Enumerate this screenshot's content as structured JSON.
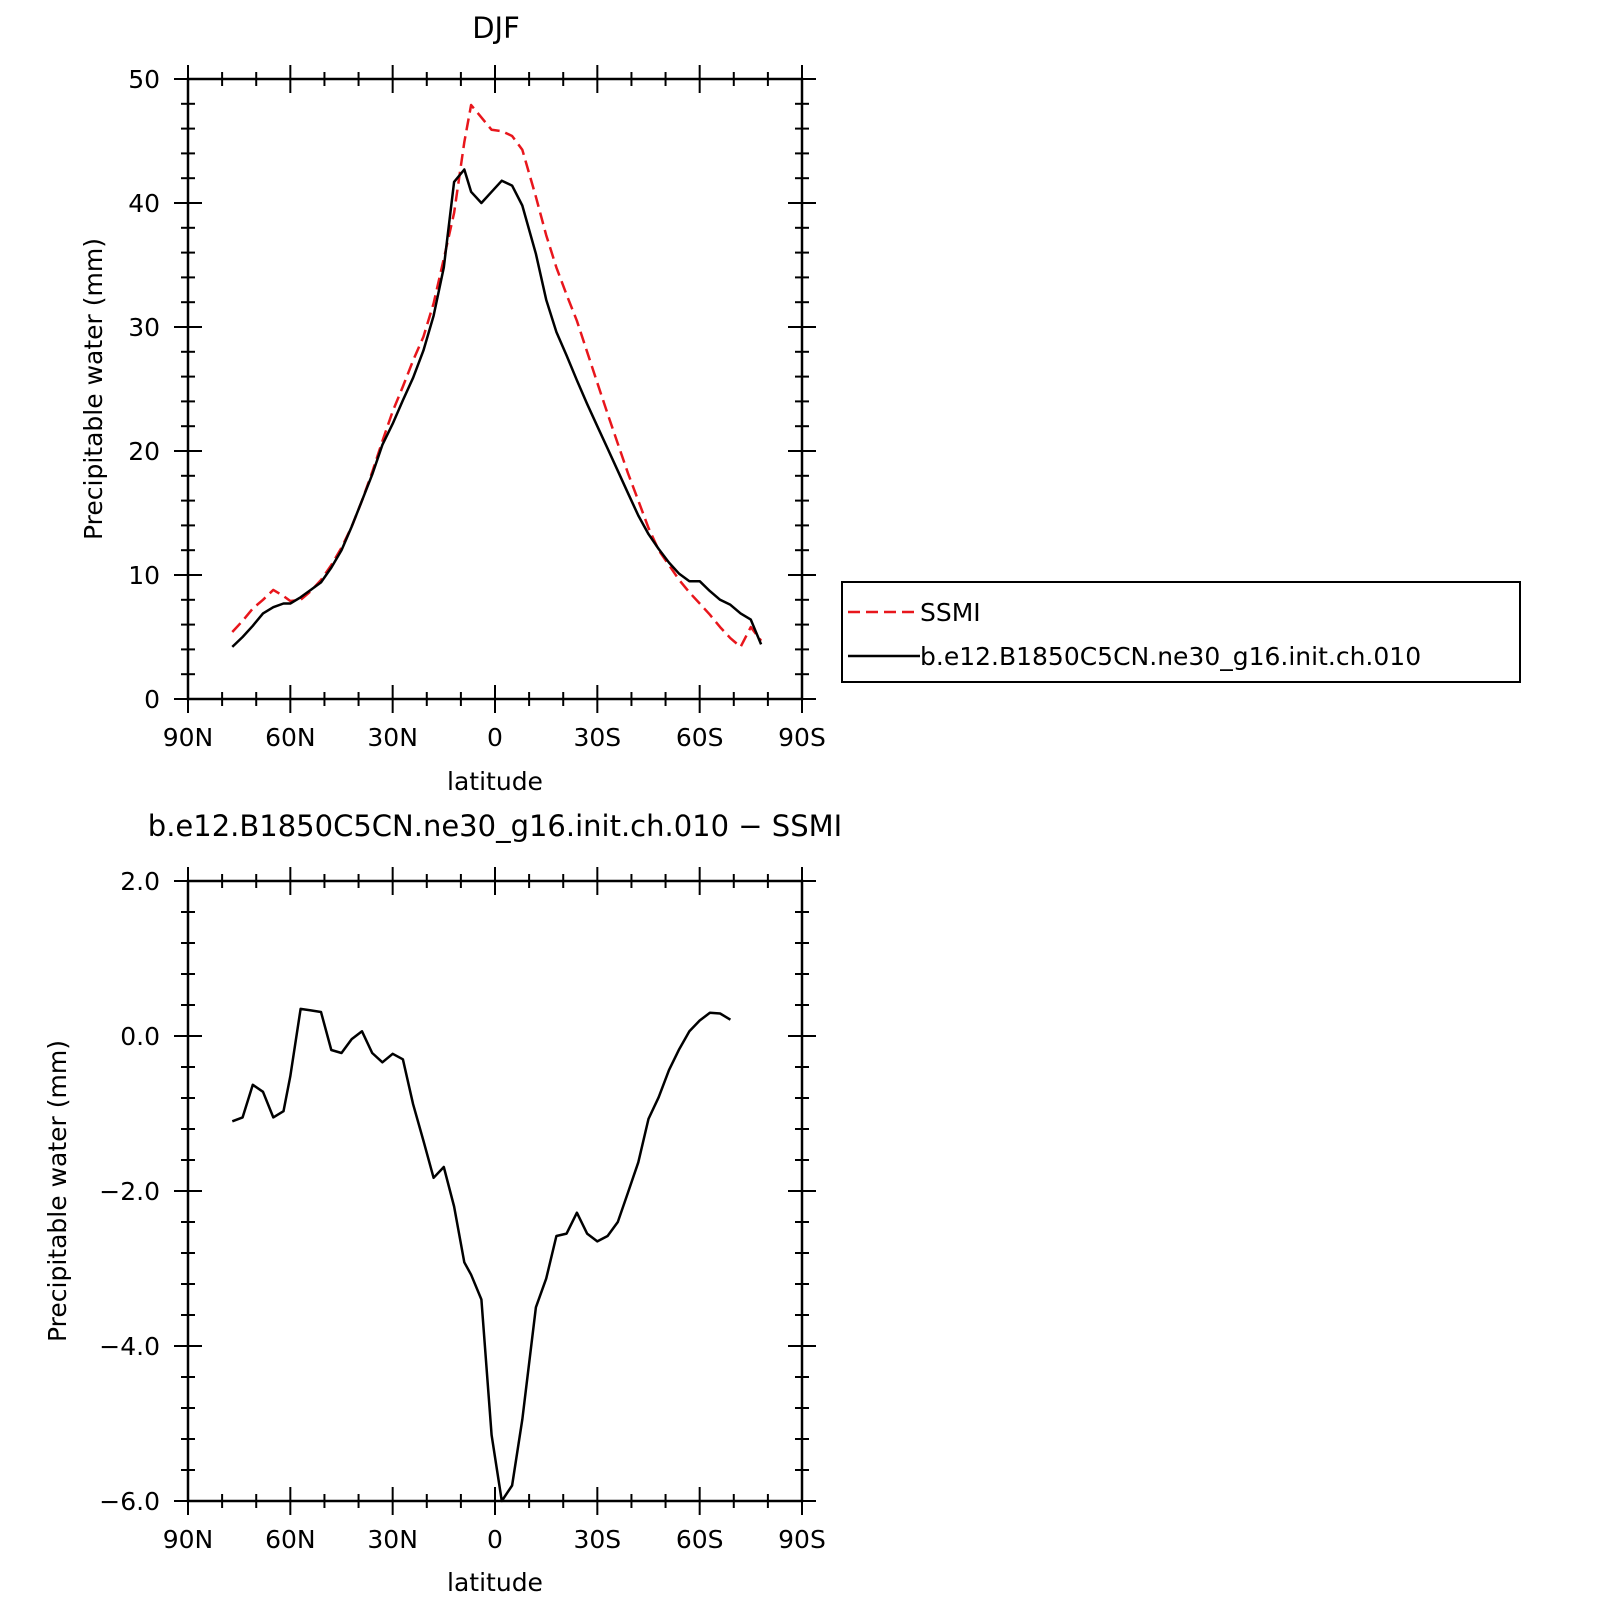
{
  "chart_data": [
    {
      "type": "line",
      "title": "DJF",
      "xlabel": "latitude",
      "ylabel": "Precipitable water (mm)",
      "xlim": [
        90,
        -90
      ],
      "ylim": [
        0,
        50
      ],
      "xticks": [
        90,
        60,
        30,
        0,
        -30,
        -60,
        -90
      ],
      "xtick_labels": [
        "90N",
        "60N",
        "30N",
        "0",
        "30S",
        "60S",
        "90S"
      ],
      "yticks": [
        0,
        10,
        20,
        30,
        40,
        50
      ],
      "ytick_labels": [
        "0",
        "10",
        "20",
        "30",
        "40",
        "50"
      ],
      "legend_position": "right",
      "series": [
        {
          "name": "SSMI",
          "color": "#e8161c",
          "style": "dashed",
          "x": [
            77,
            74,
            71,
            68,
            65,
            62,
            60,
            57,
            54,
            51,
            48,
            45,
            42,
            39,
            36,
            33,
            30,
            27,
            24,
            21,
            18,
            15,
            12,
            9,
            7,
            4,
            1,
            -2,
            -5,
            -8,
            -12,
            -15,
            -18,
            -21,
            -24,
            -27,
            -30,
            -33,
            -36,
            -39,
            -42,
            -45,
            -48,
            -51,
            -54,
            -57,
            -60,
            -63,
            -66,
            -69,
            -72,
            -75,
            -78
          ],
          "y": [
            5.4,
            6.3,
            7.3,
            8.0,
            8.8,
            8.3,
            7.9,
            8.0,
            8.7,
            9.6,
            10.8,
            12.2,
            13.9,
            16.0,
            18.3,
            20.8,
            23.2,
            25.2,
            27.3,
            29.2,
            31.9,
            35.5,
            39.2,
            44.9,
            47.9,
            46.9,
            45.9,
            45.8,
            45.4,
            44.3,
            40.5,
            37.4,
            34.8,
            32.6,
            30.5,
            28.0,
            25.5,
            23.0,
            20.6,
            18.2,
            16.0,
            13.8,
            12.0,
            10.8,
            9.6,
            8.6,
            7.7,
            6.8,
            5.8,
            4.9,
            4.2,
            5.8,
            4.7
          ]
        },
        {
          "name": "b.e12.B1850C5CN.ne30_g16.init.ch.010",
          "color": "#000000",
          "style": "solid",
          "x": [
            77,
            74,
            71,
            68,
            65,
            62,
            60,
            57,
            54,
            51,
            48,
            45,
            42,
            39,
            36,
            33,
            30,
            27,
            24,
            21,
            18,
            15,
            12,
            9,
            7,
            4,
            1,
            -2,
            -5,
            -8,
            -12,
            -15,
            -18,
            -21,
            -24,
            -27,
            -30,
            -33,
            -36,
            -39,
            -42,
            -45,
            -48,
            -51,
            -54,
            -57,
            -60,
            -63,
            -66,
            -69,
            -72,
            -75,
            -78
          ],
          "y": [
            4.2,
            5.0,
            5.9,
            6.9,
            7.4,
            7.7,
            7.7,
            8.2,
            8.8,
            9.4,
            10.6,
            12.0,
            13.9,
            16.0,
            18.1,
            20.5,
            22.2,
            24.1,
            25.9,
            28.1,
            30.9,
            34.8,
            41.7,
            42.7,
            40.9,
            40.0,
            40.9,
            41.8,
            41.4,
            39.8,
            35.9,
            32.2,
            29.6,
            27.7,
            25.7,
            23.8,
            22.0,
            20.2,
            18.4,
            16.6,
            14.8,
            13.3,
            12.1,
            11.0,
            10.1,
            9.5,
            9.5,
            8.7,
            8.0,
            7.6,
            6.9,
            6.4,
            4.4
          ]
        }
      ]
    },
    {
      "type": "line",
      "title": "b.e12.B1850C5CN.ne30_g16.init.ch.010 − SSMI",
      "xlabel": "latitude",
      "ylabel": "Precipitable water (mm)",
      "xlim": [
        90,
        -90
      ],
      "ylim": [
        -6.0,
        2.0
      ],
      "xticks": [
        90,
        60,
        30,
        0,
        -30,
        -60,
        -90
      ],
      "xtick_labels": [
        "90N",
        "60N",
        "30N",
        "0",
        "30S",
        "60S",
        "90S"
      ],
      "yticks": [
        -6.0,
        -4.0,
        -2.0,
        0.0,
        2.0
      ],
      "ytick_labels": [
        "−6.0",
        "−4.0",
        "−2.0",
        "0.0",
        "2.0"
      ],
      "series": [
        {
          "name": "",
          "color": "#000000",
          "style": "solid",
          "x": [
            77,
            74,
            71,
            68,
            65,
            62,
            60,
            57,
            54,
            51,
            48,
            45,
            42,
            39,
            36,
            33,
            30,
            27,
            24,
            21,
            18,
            15,
            12,
            9,
            7,
            4,
            1,
            -2,
            -5,
            -8,
            -12,
            -15,
            -18,
            -21,
            -24,
            -27,
            -30,
            -33,
            -36,
            -39,
            -42,
            -45,
            -48,
            -51,
            -54,
            -57,
            -60,
            -63,
            -66,
            -69
          ],
          "y": [
            -1.1,
            -1.05,
            -0.63,
            -0.72,
            -1.05,
            -0.97,
            -0.52,
            0.35,
            0.33,
            0.31,
            -0.18,
            -0.22,
            -0.04,
            0.06,
            -0.22,
            -0.34,
            -0.23,
            -0.3,
            -0.88,
            -1.35,
            -1.83,
            -1.69,
            -2.2,
            -2.92,
            -3.08,
            -3.4,
            -5.15,
            -6.0,
            -5.8,
            -4.95,
            -3.5,
            -3.13,
            -2.58,
            -2.55,
            -2.28,
            -2.55,
            -2.65,
            -2.58,
            -2.4,
            -2.02,
            -1.63,
            -1.07,
            -0.79,
            -0.44,
            -0.17,
            0.06,
            0.2,
            0.3,
            0.29,
            0.21
          ]
        }
      ]
    }
  ]
}
